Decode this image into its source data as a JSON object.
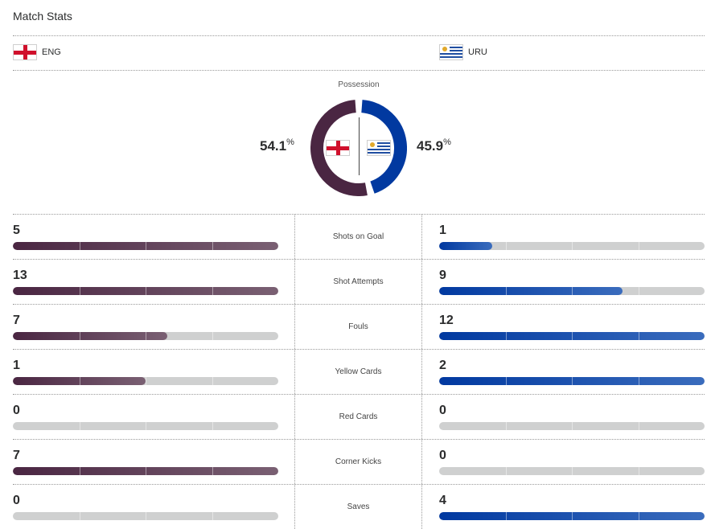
{
  "header": {
    "title": "Match Stats"
  },
  "teams": {
    "home": {
      "abbr": "ENG",
      "flag": "england-flag-icon",
      "color": "#4a2642"
    },
    "away": {
      "abbr": "URU",
      "flag": "uruguay-flag-icon",
      "color": "#0139a0"
    }
  },
  "possession": {
    "label": "Possession",
    "home_pct": 54.1,
    "away_pct": 45.9,
    "home_text": "54.1",
    "away_text": "45.9",
    "unit": "%"
  },
  "stats": [
    {
      "label": "Shots on Goal",
      "home": 5,
      "away": 1,
      "home_fill": 1.0,
      "away_fill": 0.2
    },
    {
      "label": "Shot Attempts",
      "home": 13,
      "away": 9,
      "home_fill": 1.0,
      "away_fill": 0.692
    },
    {
      "label": "Fouls",
      "home": 7,
      "away": 12,
      "home_fill": 0.583,
      "away_fill": 1.0
    },
    {
      "label": "Yellow Cards",
      "home": 1,
      "away": 2,
      "home_fill": 0.5,
      "away_fill": 1.0
    },
    {
      "label": "Red Cards",
      "home": 0,
      "away": 0,
      "home_fill": 0,
      "away_fill": 0
    },
    {
      "label": "Corner Kicks",
      "home": 7,
      "away": 0,
      "home_fill": 1.0,
      "away_fill": 0
    },
    {
      "label": "Saves",
      "home": 0,
      "away": 4,
      "home_fill": 0,
      "away_fill": 1.0
    }
  ]
}
